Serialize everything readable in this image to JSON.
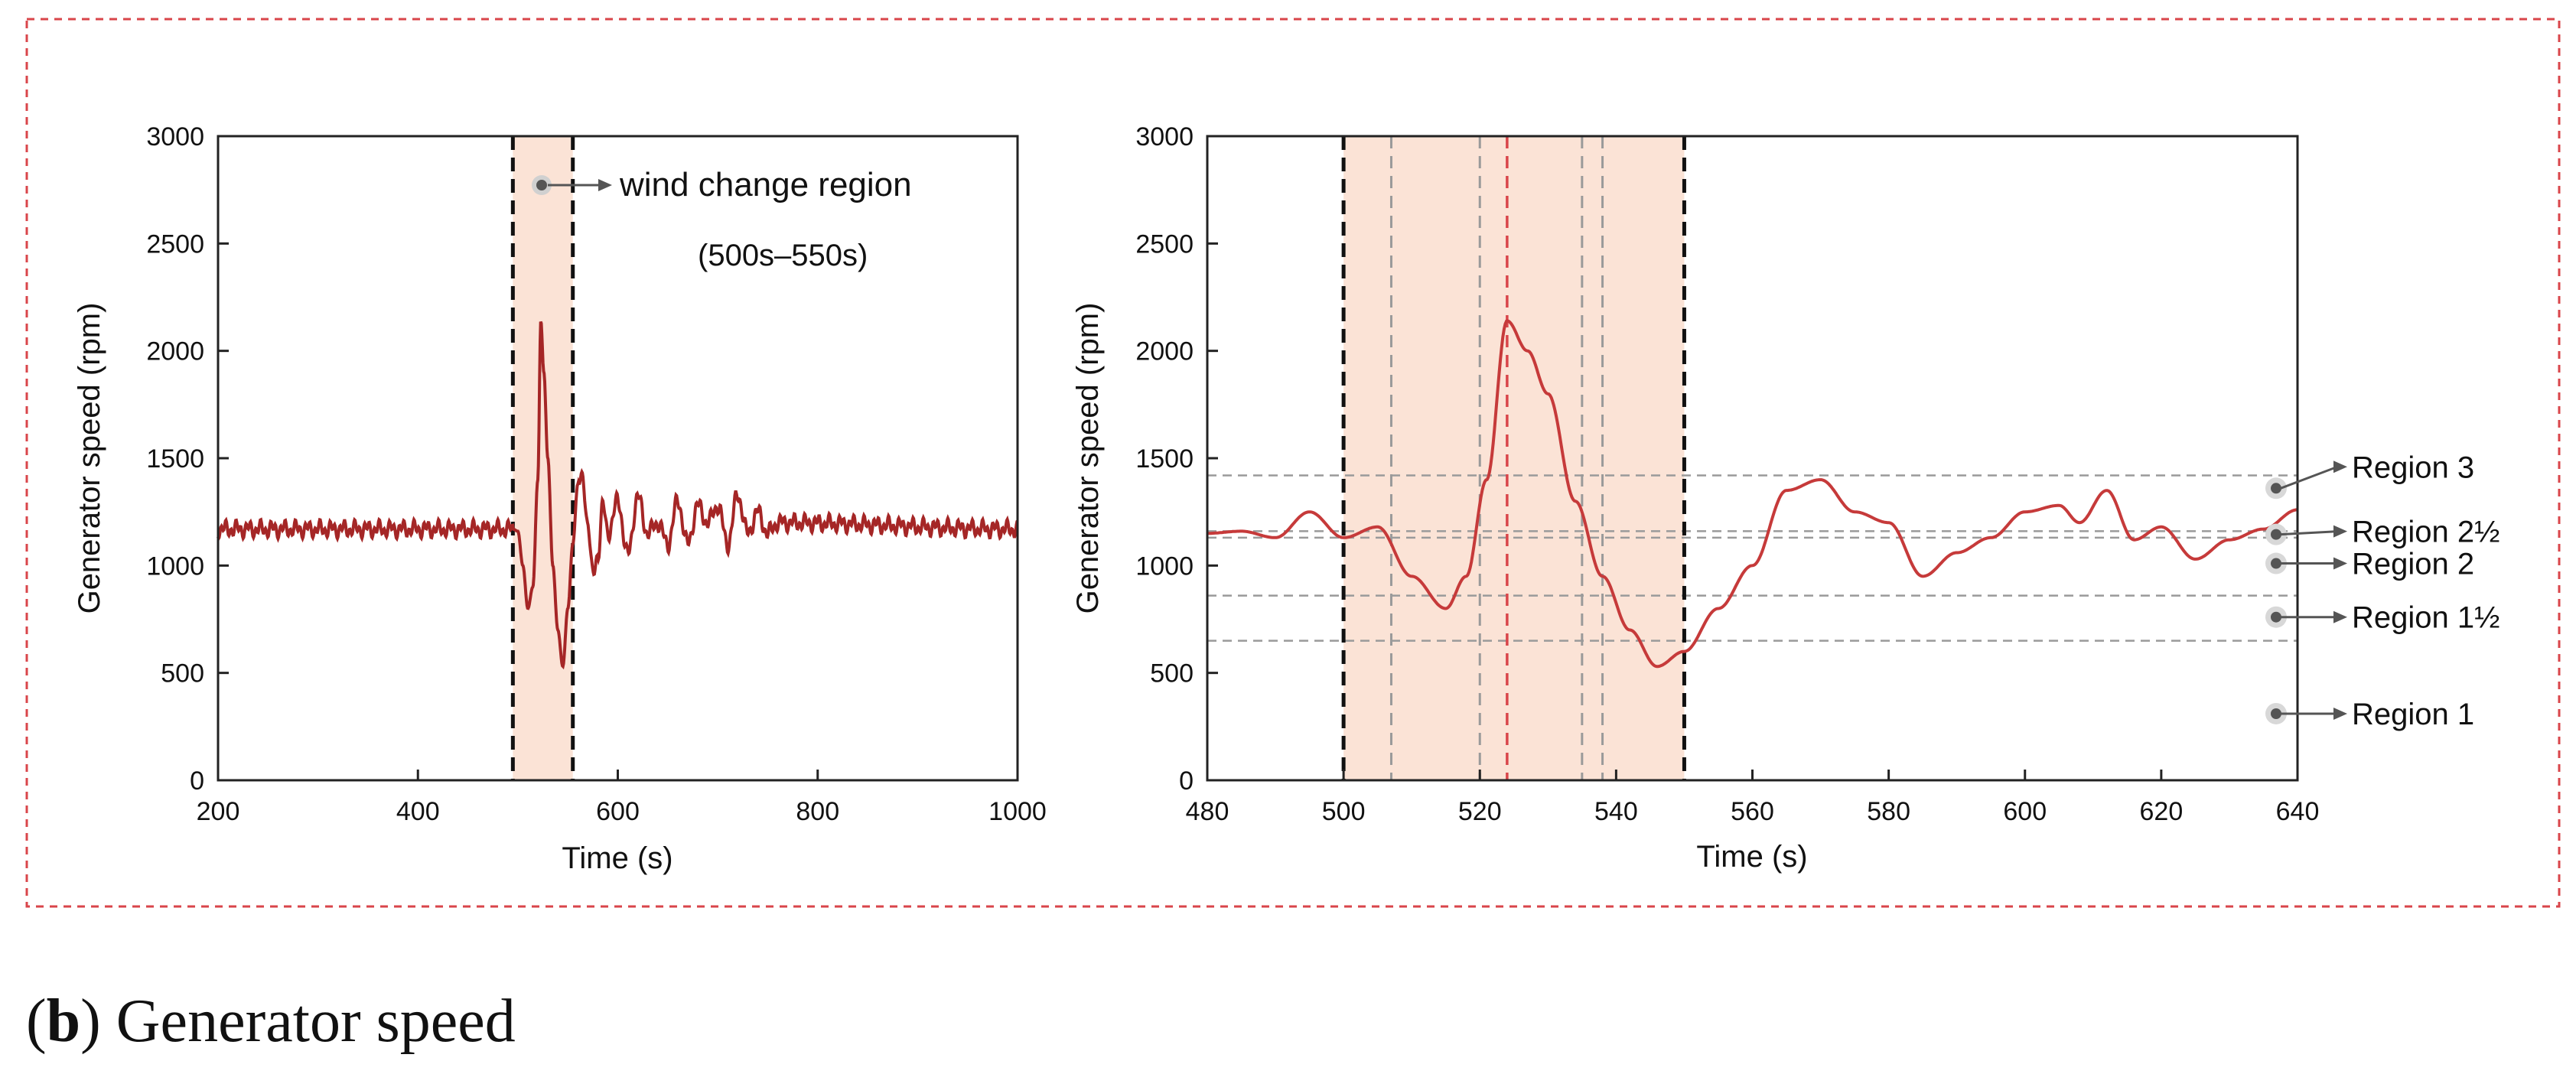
{
  "caption": {
    "letter": "b",
    "open": "(",
    "close": ")",
    "text": "Generator speed"
  },
  "colors": {
    "curve": "#a52626",
    "shade": "#fbe3d6",
    "frame": "#d9454a",
    "grid": "#9a9a9a"
  },
  "chart_data": [
    {
      "type": "line",
      "xlabel": "Time (s)",
      "ylabel": "Generator speed (rpm)",
      "xlim": [
        200,
        1000
      ],
      "ylim": [
        0,
        3000
      ],
      "xticks": [
        200,
        400,
        600,
        800,
        1000
      ],
      "yticks": [
        0,
        500,
        1000,
        1500,
        2000,
        2500,
        3000
      ],
      "shaded_region": [
        495,
        555
      ],
      "vlines": [
        495,
        555
      ],
      "annotation": {
        "label": "wind change region",
        "sublabel": "(500s–550s)",
        "x": 518,
        "y": 2790
      },
      "series": [
        {
          "x": [
            200,
            495,
            500,
            505,
            510,
            515,
            520,
            523,
            526,
            530,
            535,
            540,
            545,
            550,
            555,
            560,
            565,
            570,
            575,
            580,
            585,
            590,
            600,
            610,
            620,
            630,
            640,
            650,
            660,
            670,
            680,
            690,
            700,
            710,
            720,
            730,
            740,
            750,
            760,
            1000
          ],
          "y": [
            1170,
            1170,
            1160,
            1000,
            800,
            900,
            1400,
            2140,
            1900,
            1500,
            1000,
            700,
            530,
            800,
            1100,
            1380,
            1400,
            1200,
            950,
            1050,
            1280,
            1150,
            1300,
            1050,
            1320,
            1150,
            1200,
            1100,
            1300,
            1100,
            1280,
            1200,
            1280,
            1100,
            1330,
            1150,
            1250,
            1150,
            1200,
            1170
          ],
          "noise": 45
        }
      ]
    },
    {
      "type": "line",
      "xlabel": "Time (s)",
      "ylabel": "Generator speed (rpm)",
      "xlim": [
        480,
        640
      ],
      "ylim": [
        0,
        3000
      ],
      "xticks": [
        480,
        500,
        520,
        540,
        560,
        580,
        600,
        620,
        640
      ],
      "yticks": [
        0,
        500,
        1000,
        1500,
        2000,
        2500,
        3000
      ],
      "shaded_region": [
        500,
        550
      ],
      "vlines_black": [
        500,
        550
      ],
      "vlines_gray": [
        507,
        520,
        535,
        538
      ],
      "vlines_red": [
        524
      ],
      "hlines": [
        1420,
        1160,
        1130,
        860,
        650
      ],
      "region_labels": [
        {
          "label": "Region 3",
          "y": 1360,
          "target": 1420
        },
        {
          "label": "Region 2½",
          "y": 1145,
          "target": 1160
        },
        {
          "label": "Region 2",
          "y": 1010,
          "target": 1010
        },
        {
          "label": "Region 1½",
          "y": 760,
          "target": 760
        },
        {
          "label": "Region 1",
          "y": 310,
          "target": 310
        }
      ],
      "series": [
        {
          "x": [
            480,
            485,
            490,
            495,
            500,
            505,
            510,
            515,
            518,
            521,
            524,
            527,
            530,
            534,
            538,
            542,
            546,
            550,
            555,
            560,
            565,
            570,
            575,
            580,
            585,
            590,
            595,
            600,
            605,
            608,
            612,
            616,
            620,
            625,
            630,
            635,
            640
          ],
          "y": [
            1150,
            1160,
            1130,
            1250,
            1130,
            1180,
            950,
            800,
            950,
            1400,
            2140,
            2000,
            1800,
            1300,
            950,
            700,
            530,
            600,
            800,
            1000,
            1350,
            1400,
            1250,
            1200,
            950,
            1060,
            1130,
            1250,
            1280,
            1200,
            1350,
            1120,
            1180,
            1030,
            1120,
            1170,
            1260
          ]
        }
      ]
    }
  ]
}
